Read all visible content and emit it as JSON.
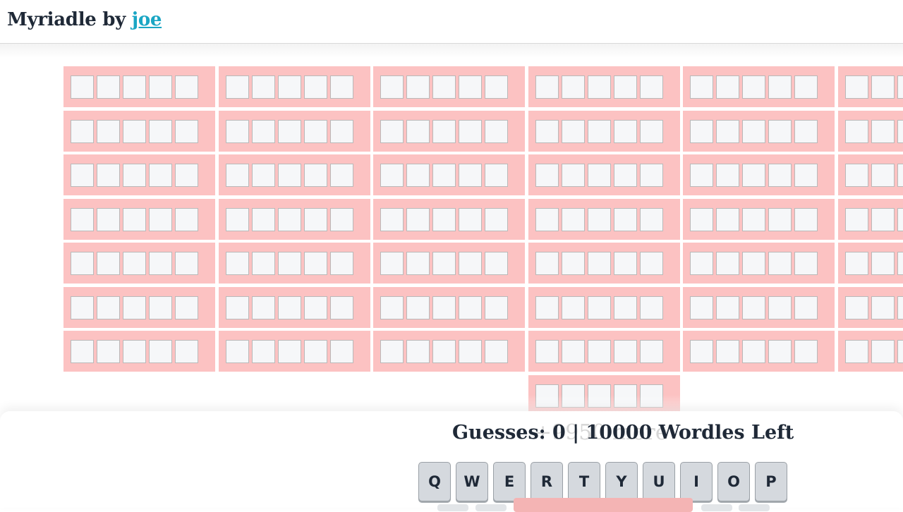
{
  "header": {
    "title_prefix": "Myriadle by",
    "author_link": "joe"
  },
  "boards": {
    "rows": 7,
    "columns_visible": 6,
    "cells_per_board": 5,
    "board_color": "#fcc2c2",
    "cell_color": "#f6f7f9"
  },
  "status": {
    "guesses_text": "Guesses: 0 | 10000 Wordles Left",
    "more_text": "+9950 more"
  },
  "keyboard": {
    "row1": [
      "Q",
      "W",
      "E",
      "R",
      "T",
      "Y",
      "U",
      "I",
      "O",
      "P"
    ]
  }
}
